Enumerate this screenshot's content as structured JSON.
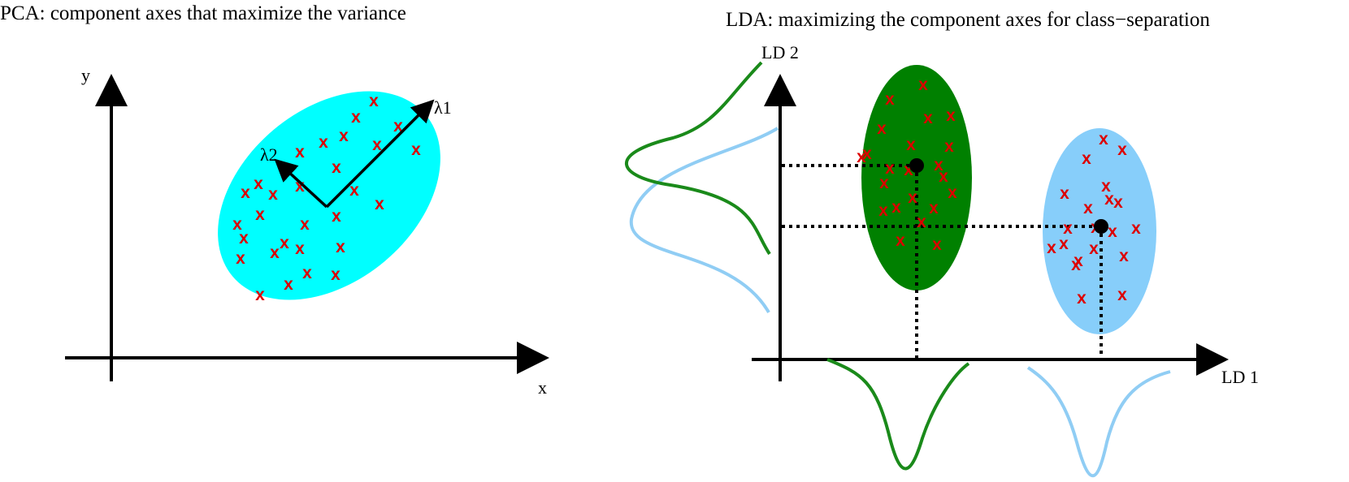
{
  "colors": {
    "pca_ellipse": "#00ffff",
    "class1_fill": "#008000",
    "class2_fill": "#87cefa",
    "marker": "#dd0000",
    "axis": "#000000",
    "curve_class1": "#1a8a1a",
    "curve_class2": "#90cdf4"
  },
  "pca": {
    "title": "PCA: component axes that maximize the variance",
    "axis_x_label": "x",
    "axis_y_label": "y",
    "component1_label": "λ1",
    "component2_label": "λ2",
    "marker_glyph": "x",
    "marker_count": 29
  },
  "lda": {
    "title": "LDA: maximizing the component axes for class−separation",
    "axis_x_label": "LD 1",
    "axis_y_label": "LD 2",
    "marker_glyph": "x",
    "class1_marker_count": 22,
    "class2_marker_count": 20
  }
}
